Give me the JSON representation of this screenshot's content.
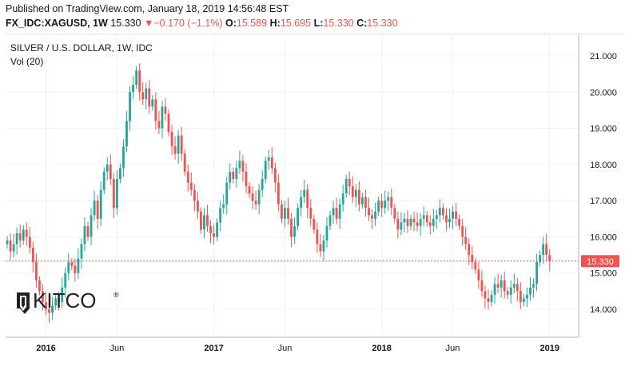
{
  "header": {
    "published": "Published on TradingView.com, January 18, 2019 14:56:48 EST",
    "symbol": "FX_IDC:XAGUSD, 1W",
    "last": "15.330",
    "change_arrow": "▼",
    "change": "−0.170 (−1.1%)",
    "open_label": "O:",
    "open": "15.589",
    "high_label": "H:",
    "high": "15.695",
    "low_label": "L:",
    "low": "15.330",
    "close_label": "C:",
    "close": "15.330"
  },
  "legend": {
    "title": "SILVER / U.S. DOLLAR, 1W, IDC",
    "volume": "Vol (20)"
  },
  "watermark": {
    "text": "KITCO",
    "mark": "®",
    "icon": "kitco-logo-icon"
  },
  "colors": {
    "up": "#26a69a",
    "down": "#ef5350",
    "price_line": "#ef5350",
    "grid": "#eef0f3",
    "axis_text": "#131722"
  },
  "price_tag": "15.330",
  "chart_data": {
    "type": "candlestick",
    "title": "SILVER / U.S. DOLLAR, 1W, IDC",
    "ylim": [
      13.5,
      21.5
    ],
    "y_ticks": [
      "14.000",
      "15.000",
      "16.000",
      "17.000",
      "18.000",
      "19.000",
      "20.000",
      "21.000"
    ],
    "x_ticks": [
      {
        "label": "2016",
        "week": 12
      },
      {
        "label": "Jun",
        "week": 34
      },
      {
        "label": "2017",
        "week": 64
      },
      {
        "label": "Jun",
        "week": 86
      },
      {
        "label": "2018",
        "week": 116
      },
      {
        "label": "Jun",
        "week": 138
      },
      {
        "label": "2019",
        "week": 168
      }
    ],
    "last_price": 15.33,
    "closes": [
      15.9,
      15.6,
      15.8,
      16.1,
      15.9,
      16.2,
      16.0,
      15.7,
      15.3,
      14.8,
      14.5,
      14.2,
      14.0,
      13.9,
      14.1,
      14.3,
      14.2,
      14.6,
      15.0,
      15.3,
      15.2,
      15.0,
      15.4,
      15.8,
      16.3,
      16.0,
      16.6,
      17.0,
      16.5,
      17.3,
      17.8,
      18.0,
      17.6,
      16.8,
      17.6,
      17.9,
      18.5,
      19.2,
      20.0,
      20.2,
      20.6,
      20.0,
      19.8,
      20.1,
      19.6,
      19.8,
      19.2,
      19.0,
      19.6,
      19.4,
      18.9,
      18.5,
      18.3,
      18.8,
      18.3,
      17.8,
      17.5,
      17.3,
      17.0,
      16.7,
      16.2,
      16.6,
      16.3,
      16.1,
      16.0,
      16.4,
      16.8,
      16.9,
      17.5,
      17.8,
      17.6,
      17.9,
      18.1,
      17.8,
      17.4,
      17.2,
      17.0,
      16.9,
      17.3,
      17.6,
      18.1,
      18.2,
      17.9,
      17.5,
      16.9,
      16.5,
      16.8,
      16.5,
      16.0,
      16.3,
      16.8,
      17.1,
      17.3,
      16.8,
      16.5,
      16.2,
      15.8,
      15.6,
      15.9,
      16.3,
      16.6,
      16.8,
      16.5,
      16.9,
      17.2,
      17.6,
      17.4,
      17.1,
      17.3,
      16.9,
      17.1,
      16.8,
      16.6,
      16.5,
      16.7,
      17.0,
      16.8,
      17.0,
      17.1,
      16.8,
      16.5,
      16.2,
      16.4,
      16.5,
      16.3,
      16.5,
      16.4,
      16.3,
      16.5,
      16.6,
      16.4,
      16.3,
      16.5,
      16.6,
      16.8,
      16.6,
      16.4,
      16.5,
      16.7,
      16.5,
      16.3,
      16.0,
      15.8,
      15.5,
      15.3,
      15.1,
      14.8,
      14.5,
      14.3,
      14.2,
      14.4,
      14.7,
      14.6,
      14.8,
      14.5,
      14.4,
      14.6,
      14.7,
      14.5,
      14.2,
      14.3,
      14.4,
      14.6,
      14.7,
      15.3,
      15.5,
      15.8,
      15.5,
      15.33
    ],
    "y_tick_values": [
      14,
      15,
      16,
      17,
      18,
      19,
      20,
      21
    ],
    "weeks_total": 175
  }
}
